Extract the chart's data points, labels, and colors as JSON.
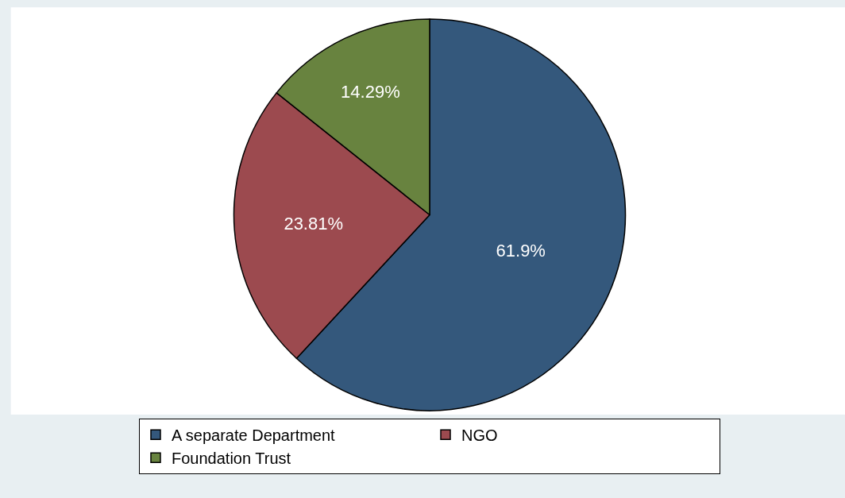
{
  "chart_data": {
    "type": "pie",
    "categories": [
      "A separate Department",
      "NGO",
      "Foundation Trust"
    ],
    "values": [
      61.9,
      23.81,
      14.29
    ],
    "colors": [
      "#34587c",
      "#9c4a4f",
      "#68833f"
    ],
    "value_labels": [
      "61.9%",
      "23.81%",
      "14.29%"
    ],
    "legend": "bottom"
  }
}
